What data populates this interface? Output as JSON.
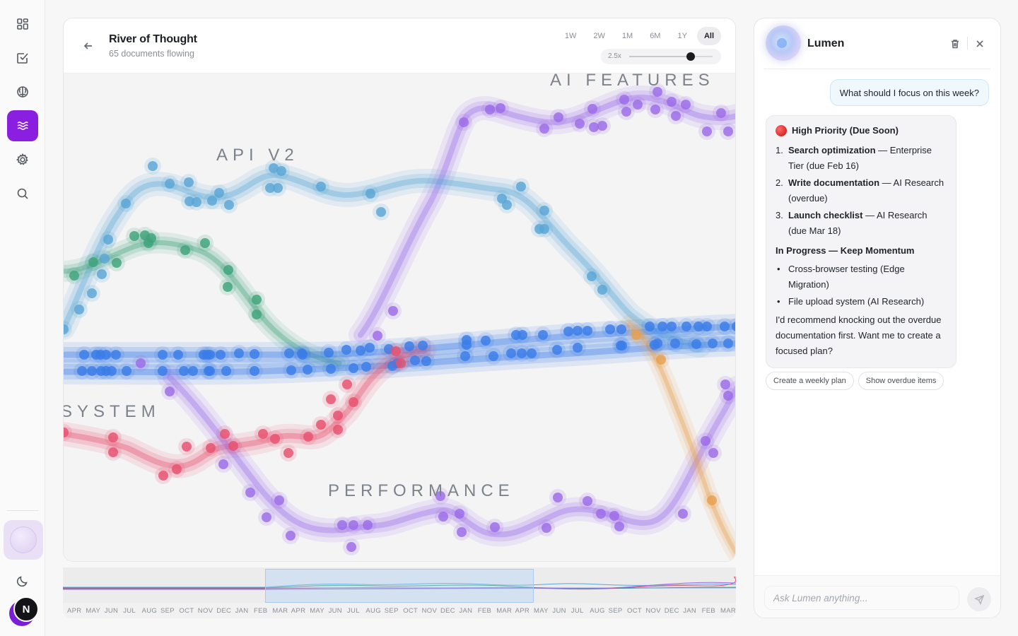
{
  "rail": {
    "items": [
      {
        "icon": "grid-icon",
        "active": false
      },
      {
        "icon": "checkbox-icon",
        "active": false
      },
      {
        "icon": "brain-icon",
        "active": false
      },
      {
        "icon": "waves-icon",
        "active": true
      },
      {
        "icon": "gear-icon",
        "active": false
      },
      {
        "icon": "search-icon",
        "active": false
      }
    ],
    "footer_icon": "moon-icon",
    "avatar_initial": "N"
  },
  "header": {
    "title": "River of Thought",
    "subtitle": "65 documents flowing",
    "ranges": [
      "1W",
      "2W",
      "1M",
      "6M",
      "1Y",
      "All"
    ],
    "active_range": "All",
    "zoom_label": "2.5x",
    "zoom_level": 0.74
  },
  "streams": [
    {
      "label": "AI FEATURES",
      "color": "#9b6be8"
    },
    {
      "label": "API V2",
      "color": "#5aa6d6"
    },
    {
      "label": "SYSTEM",
      "color": "#e8506e"
    },
    {
      "label": "PERFORMANCE",
      "color": "#9b6be8"
    }
  ],
  "stream_colors": {
    "purple": "#9b6be8",
    "lightblue": "#5aa6d6",
    "green": "#3ea37a",
    "blue": "#3b7de8",
    "red": "#e8506e",
    "orange": "#e8a04e"
  },
  "timeline": {
    "months": [
      "APR",
      "MAY",
      "JUN",
      "JUL",
      "AUG",
      "SEP",
      "OCT",
      "NOV",
      "DEC",
      "JAN",
      "FEB",
      "MAR",
      "APR",
      "MAY",
      "JUN",
      "JUL",
      "AUG",
      "SEP",
      "OCT",
      "NOV",
      "DEC",
      "JAN",
      "FEB",
      "MAR",
      "APR",
      "MAY",
      "JUN",
      "JUL",
      "AUG",
      "SEP",
      "OCT",
      "NOV",
      "DEC",
      "JAN",
      "FEB",
      "MAR"
    ]
  },
  "chat": {
    "assistant_name": "Lumen",
    "user_message": "What should I focus on this week?",
    "response": {
      "heading": "High Priority (Due Soon)",
      "priorities": [
        {
          "num": "1.",
          "bold": "Search optimization",
          "rest": " — Enterprise Tier (due Feb 16)"
        },
        {
          "num": "2.",
          "bold": "Write documentation",
          "rest": " — AI Research (overdue)"
        },
        {
          "num": "3.",
          "bold": "Launch checklist",
          "rest": " — AI Research (due Mar 18)"
        }
      ],
      "progress_heading": "In Progress — Keep Momentum",
      "progress_items": [
        "Cross-browser testing (Edge Migration)",
        "File upload system (AI Research)"
      ],
      "closing": "I'd recommend knocking out the overdue documentation first. Want me to create a focused plan?"
    },
    "suggestions": [
      "Create a weekly plan",
      "Show overdue items"
    ],
    "input_placeholder": "Ask Lumen anything..."
  }
}
